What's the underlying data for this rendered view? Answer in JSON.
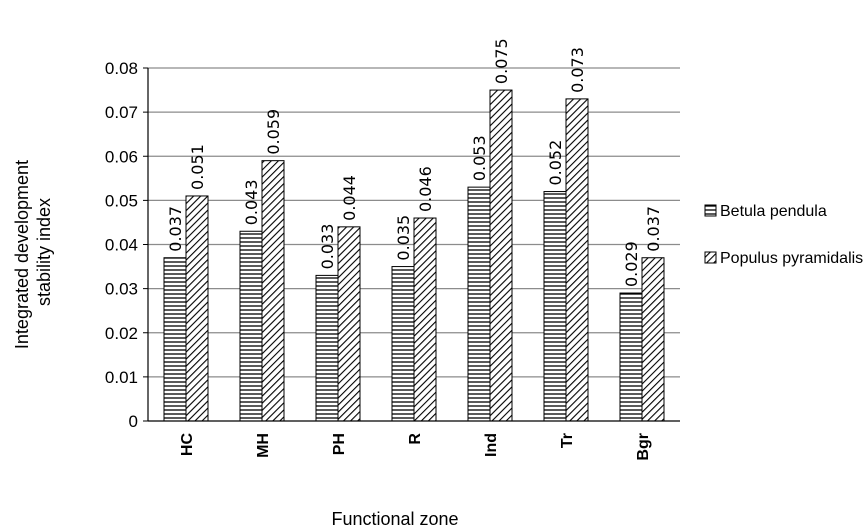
{
  "chart_data": {
    "type": "bar",
    "categories": [
      "HC",
      "MH",
      "PH",
      "R",
      "Ind",
      "Tr",
      "Bgr"
    ],
    "series": [
      {
        "name": "Betula pendula",
        "values": [
          0.037,
          0.043,
          0.033,
          0.035,
          0.053,
          0.052,
          0.029
        ],
        "labels": [
          "0.037",
          "0.043",
          "0.033",
          "0.035",
          "0.053",
          "0.052",
          "0.029"
        ],
        "pattern": "horizontal-lines"
      },
      {
        "name": "Populus pyramidalis",
        "values": [
          0.051,
          0.059,
          0.044,
          0.046,
          0.075,
          0.073,
          0.037
        ],
        "labels": [
          "0.051",
          "0.059",
          "0.044",
          "0.046",
          "0.075",
          "0.073",
          "0.037"
        ],
        "pattern": "diagonal-lines"
      }
    ],
    "ylim": [
      0,
      0.08
    ],
    "yticks": [
      "0",
      "0.01",
      "0.02",
      "0.03",
      "0.04",
      "0.05",
      "0.06",
      "0.07",
      "0.08"
    ],
    "xlabel": "Functional zone",
    "ylabel_lines": [
      "Integrated  development",
      "stability index"
    ],
    "grid": true,
    "legend_position": "right",
    "colors": {
      "bar_fill": "#ffffff",
      "bar_stroke": "#000000",
      "grid": "#8c8c8c"
    }
  }
}
